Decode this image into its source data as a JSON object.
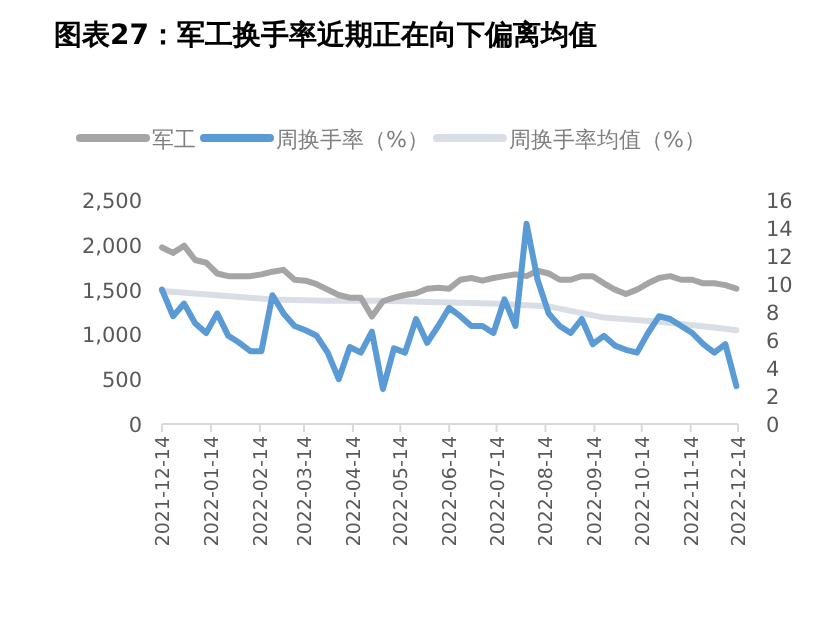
{
  "chart_data": {
    "type": "line",
    "title": "图表27：军工换手率近期正在向下偏离均值",
    "x": [
      "2021-12-14",
      "2021-12-21",
      "2021-12-28",
      "2022-01-04",
      "2022-01-11",
      "2022-01-18",
      "2022-01-25",
      "2022-02-01",
      "2022-02-08",
      "2022-02-15",
      "2022-02-22",
      "2022-03-01",
      "2022-03-08",
      "2022-03-15",
      "2022-03-22",
      "2022-03-29",
      "2022-04-05",
      "2022-04-12",
      "2022-04-19",
      "2022-04-26",
      "2022-05-03",
      "2022-05-10",
      "2022-05-17",
      "2022-05-24",
      "2022-05-31",
      "2022-06-07",
      "2022-06-14",
      "2022-06-21",
      "2022-06-28",
      "2022-07-05",
      "2022-07-12",
      "2022-07-19",
      "2022-07-26",
      "2022-08-02",
      "2022-08-09",
      "2022-08-16",
      "2022-08-23",
      "2022-08-30",
      "2022-09-06",
      "2022-09-13",
      "2022-09-20",
      "2022-09-27",
      "2022-10-04",
      "2022-10-11",
      "2022-10-18",
      "2022-10-25",
      "2022-11-01",
      "2022-11-08",
      "2022-11-15",
      "2022-11-22",
      "2022-11-29",
      "2022-12-06",
      "2022-12-13"
    ],
    "series": [
      {
        "name": "军工",
        "color": "#a5a5a5",
        "values": [
          1970,
          1910,
          1990,
          1830,
          1800,
          1680,
          1650,
          1650,
          1650,
          1670,
          1700,
          1720,
          1610,
          1600,
          1560,
          1500,
          1440,
          1410,
          1410,
          1200,
          1370,
          1410,
          1440,
          1460,
          1510,
          1520,
          1510,
          1610,
          1630,
          1600,
          1630,
          1650,
          1670,
          1650,
          1710,
          1680,
          1610,
          1610,
          1650,
          1650,
          1570,
          1500,
          1450,
          1500,
          1570,
          1630,
          1650,
          1610,
          1610,
          1570,
          1570,
          1550,
          1510
        ]
      },
      {
        "name": "周换手率（%）",
        "color": "#5b9bd5",
        "axis": "y2",
        "values": [
          9.6,
          7.7,
          8.6,
          7.2,
          6.5,
          7.9,
          6.3,
          5.8,
          5.2,
          5.2,
          9.2,
          7.9,
          7.0,
          6.7,
          6.3,
          5.1,
          3.2,
          5.5,
          5.1,
          6.6,
          2.5,
          5.4,
          5.1,
          7.5,
          5.8,
          7.0,
          8.3,
          7.7,
          7.0,
          7.0,
          6.5,
          8.9,
          7.0,
          14.3,
          10.3,
          7.9,
          7.0,
          6.5,
          7.5,
          5.7,
          6.3,
          5.6,
          5.3,
          5.1,
          6.5,
          7.7,
          7.5,
          7.0,
          6.5,
          5.7,
          5.1,
          5.7,
          2.7
        ]
      },
      {
        "name": "周换手率均值（%）",
        "color": "#d9dee6",
        "axis": "y2",
        "x": [
          "2021-12-14",
          "2022-01-18",
          "2022-02-22",
          "2022-03-29",
          "2022-05-03",
          "2022-06-07",
          "2022-07-12",
          "2022-08-16",
          "2022-09-20",
          "2022-10-25",
          "2022-11-29",
          "2022-12-13"
        ],
        "values": [
          9.5,
          9.2,
          8.9,
          8.8,
          8.8,
          8.7,
          8.6,
          8.4,
          7.6,
          7.3,
          6.9,
          6.7
        ]
      }
    ],
    "xlim": [
      "2021-12-14",
      "2022-12-14"
    ],
    "xticks": [
      "2021-12-14",
      "2022-01-14",
      "2022-02-14",
      "2022-03-14",
      "2022-04-14",
      "2022-05-14",
      "2022-06-14",
      "2022-07-14",
      "2022-08-14",
      "2022-09-14",
      "2022-10-14",
      "2022-11-14",
      "2022-12-14"
    ],
    "ylim": [
      0,
      2500
    ],
    "yticks": [
      {
        "value": 0,
        "label": "0"
      },
      {
        "value": 500,
        "label": "500"
      },
      {
        "value": 1000,
        "label": "1,000"
      },
      {
        "value": 1500,
        "label": "1,500"
      },
      {
        "value": 2000,
        "label": "2,000"
      },
      {
        "value": 2500,
        "label": "2,500"
      }
    ],
    "y2lim": [
      0,
      16
    ],
    "y2ticks": [
      0,
      2,
      4,
      6,
      8,
      10,
      12,
      14,
      16
    ],
    "legend": "top",
    "grid": false,
    "line_style": "solid"
  }
}
